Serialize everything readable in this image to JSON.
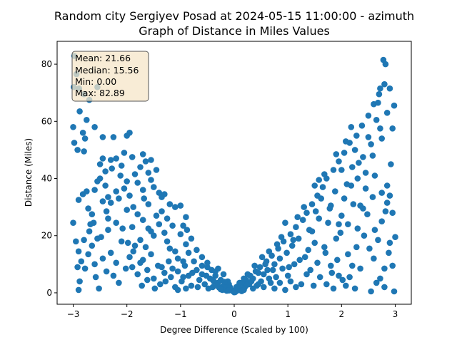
{
  "chart_data": {
    "type": "scatter",
    "title_line1": "Random city Sergiyev Posad at 2024-05-15 11:00:00  - azimuth",
    "title_line2": "Graph of Distance in Miles Values",
    "xlabel": "Degree Difference (Scaled by 100)",
    "ylabel": "Distance (Miles)",
    "xlim": [
      -3.3,
      3.3
    ],
    "ylim": [
      -4,
      88
    ],
    "xticks": [
      -3,
      -2,
      -1,
      0,
      1,
      2,
      3
    ],
    "yticks": [
      0,
      20,
      40,
      60,
      80
    ],
    "point_color": "#1f77b4",
    "grid": false,
    "stats_box": {
      "mean": "Mean: 21.66",
      "median": "Median: 15.56",
      "min": "Min: 0.00",
      "max": "Max: 82.89",
      "placement": "top-left",
      "facecolor": "#f5e6c8"
    },
    "points": [
      [
        -2.98,
        82.9
      ],
      [
        -2.94,
        76.5
      ],
      [
        -2.99,
        72.0
      ],
      [
        -2.89,
        71.5
      ],
      [
        -2.8,
        69.5
      ],
      [
        -2.7,
        67.5
      ],
      [
        -2.55,
        72.0
      ],
      [
        -3.0,
        58.0
      ],
      [
        -2.88,
        63.5
      ],
      [
        -2.75,
        60.5
      ],
      [
        -2.82,
        56.0
      ],
      [
        -2.98,
        52.5
      ],
      [
        -2.92,
        50.0
      ],
      [
        -2.8,
        49.5
      ],
      [
        -2.78,
        54.0
      ],
      [
        -2.6,
        58.0
      ],
      [
        -2.45,
        54.5
      ],
      [
        -2.25,
        54.5
      ],
      [
        -2.0,
        55.0
      ],
      [
        -1.95,
        56.0
      ],
      [
        -2.5,
        45.0
      ],
      [
        -2.4,
        42.5
      ],
      [
        -2.3,
        46.5
      ],
      [
        -2.2,
        47.0
      ],
      [
        -2.1,
        44.5
      ],
      [
        -2.05,
        49.0
      ],
      [
        -1.9,
        47.5
      ],
      [
        -1.7,
        48.5
      ],
      [
        -1.65,
        46.0
      ],
      [
        -1.75,
        44.0
      ],
      [
        -1.6,
        42.0
      ],
      [
        -1.55,
        39.5
      ],
      [
        -1.5,
        37.0
      ],
      [
        -1.4,
        35.0
      ],
      [
        -1.35,
        33.5
      ],
      [
        -1.3,
        34.5
      ],
      [
        -1.2,
        31.0
      ],
      [
        -1.1,
        30.0
      ],
      [
        -1.0,
        30.5
      ],
      [
        -0.9,
        26.5
      ],
      [
        -0.95,
        23.5
      ],
      [
        -2.9,
        32.5
      ],
      [
        -2.82,
        34.5
      ],
      [
        -2.72,
        29.5
      ],
      [
        -2.62,
        24.5
      ],
      [
        -2.55,
        19.0
      ],
      [
        -2.45,
        32.0
      ],
      [
        -2.38,
        28.5
      ],
      [
        -2.3,
        31.5
      ],
      [
        -2.2,
        35.5
      ],
      [
        -2.15,
        33.0
      ],
      [
        -2.05,
        36.5
      ],
      [
        -2.0,
        39.0
      ],
      [
        -1.95,
        34.0
      ],
      [
        -1.88,
        30.0
      ],
      [
        -1.8,
        27.5
      ],
      [
        -1.7,
        25.5
      ],
      [
        -1.6,
        22.5
      ],
      [
        -1.5,
        20.0
      ],
      [
        -1.45,
        27.0
      ],
      [
        -1.4,
        24.0
      ],
      [
        -1.3,
        21.0
      ],
      [
        -1.25,
        18.0
      ],
      [
        -1.2,
        15.5
      ],
      [
        -1.1,
        14.5
      ],
      [
        -1.05,
        12.0
      ],
      [
        -0.95,
        11.0
      ],
      [
        -0.9,
        17.0
      ],
      [
        -0.85,
        14.0
      ],
      [
        -3.0,
        24.5
      ],
      [
        -2.95,
        18.0
      ],
      [
        -2.9,
        14.5
      ],
      [
        -2.85,
        11.0
      ],
      [
        -2.92,
        9.0
      ],
      [
        -2.88,
        4.0
      ],
      [
        -2.9,
        1.0
      ],
      [
        -2.78,
        8.5
      ],
      [
        -2.72,
        13.5
      ],
      [
        -2.65,
        16.5
      ],
      [
        -2.6,
        10.0
      ],
      [
        -2.58,
        5.5
      ],
      [
        -2.52,
        1.5
      ],
      [
        -2.45,
        12.0
      ],
      [
        -2.38,
        7.5
      ],
      [
        -2.3,
        14.0
      ],
      [
        -2.25,
        6.0
      ],
      [
        -2.2,
        10.5
      ],
      [
        -2.15,
        3.5
      ],
      [
        -2.1,
        18.0
      ],
      [
        -2.02,
        8.5
      ],
      [
        -1.95,
        12.5
      ],
      [
        -1.9,
        9.0
      ],
      [
        -1.85,
        16.5
      ],
      [
        -1.8,
        6.5
      ],
      [
        -1.72,
        2.5
      ],
      [
        -1.7,
        11.5
      ],
      [
        -1.62,
        8.0
      ],
      [
        -1.55,
        13.5
      ],
      [
        -1.5,
        5.0
      ],
      [
        -1.42,
        9.5
      ],
      [
        -1.38,
        3.0
      ],
      [
        -1.3,
        7.0
      ],
      [
        -1.22,
        11.0
      ],
      [
        -1.18,
        5.5
      ],
      [
        -1.1,
        2.0
      ],
      [
        -1.05,
        7.5
      ],
      [
        -0.98,
        4.0
      ],
      [
        -0.92,
        9.5
      ],
      [
        -0.85,
        6.0
      ],
      [
        -0.8,
        2.5
      ],
      [
        -0.75,
        11.0
      ],
      [
        -0.7,
        8.0
      ],
      [
        -0.65,
        4.5
      ],
      [
        -0.6,
        6.5
      ],
      [
        -0.55,
        3.0
      ],
      [
        -0.5,
        9.0
      ],
      [
        -0.45,
        5.0
      ],
      [
        -0.4,
        2.0
      ],
      [
        -0.35,
        6.0
      ],
      [
        -0.3,
        3.5
      ],
      [
        -0.25,
        4.5
      ],
      [
        -0.2,
        2.5
      ],
      [
        -0.15,
        1.5
      ],
      [
        -0.1,
        3.0
      ],
      [
        -0.05,
        1.0
      ],
      [
        -0.7,
        15.0
      ],
      [
        -0.8,
        19.0
      ],
      [
        -0.6,
        12.5
      ],
      [
        -0.5,
        10.5
      ],
      [
        -0.42,
        8.0
      ],
      [
        -0.35,
        7.5
      ],
      [
        -0.88,
        22.0
      ],
      [
        -1.0,
        20.5
      ],
      [
        -1.15,
        23.5
      ],
      [
        -1.25,
        26.0
      ],
      [
        -1.35,
        28.5
      ],
      [
        -1.6,
        31.0
      ],
      [
        -1.7,
        36.0
      ],
      [
        -1.8,
        38.5
      ],
      [
        -2.35,
        22.0
      ],
      [
        -2.48,
        19.5
      ],
      [
        -2.7,
        21.5
      ],
      [
        -2.8,
        18.5
      ],
      [
        -2.68,
        24.0
      ],
      [
        -2.4,
        37.5
      ],
      [
        -2.5,
        40.0
      ],
      [
        -2.6,
        36.0
      ],
      [
        -2.35,
        33.5
      ],
      [
        -2.0,
        29.0
      ],
      [
        -1.9,
        23.0
      ],
      [
        -1.75,
        18.5
      ],
      [
        -1.65,
        16.0
      ],
      [
        -1.55,
        21.5
      ],
      [
        -0.3,
        8.5
      ],
      [
        -0.2,
        6.5
      ],
      [
        -0.12,
        4.0
      ],
      [
        -0.08,
        2.0
      ],
      [
        -0.02,
        0.5
      ],
      [
        0.02,
        0.3
      ],
      [
        0.05,
        1.2
      ],
      [
        0.08,
        2.5
      ],
      [
        0.12,
        1.5
      ],
      [
        0.15,
        3.5
      ],
      [
        0.2,
        2.0
      ],
      [
        0.22,
        4.5
      ],
      [
        0.28,
        3.0
      ],
      [
        0.3,
        6.0
      ],
      [
        0.35,
        5.0
      ],
      [
        0.4,
        7.5
      ],
      [
        0.42,
        2.5
      ],
      [
        0.48,
        9.0
      ],
      [
        0.5,
        4.0
      ],
      [
        0.55,
        6.5
      ],
      [
        0.6,
        11.0
      ],
      [
        0.62,
        8.0
      ],
      [
        0.68,
        3.5
      ],
      [
        0.7,
        13.0
      ],
      [
        0.75,
        10.0
      ],
      [
        0.78,
        5.5
      ],
      [
        0.82,
        15.5
      ],
      [
        0.85,
        12.0
      ],
      [
        0.9,
        8.5
      ],
      [
        0.92,
        18.0
      ],
      [
        0.98,
        14.0
      ],
      [
        1.0,
        6.0
      ],
      [
        1.05,
        20.5
      ],
      [
        1.08,
        16.5
      ],
      [
        1.12,
        10.0
      ],
      [
        1.15,
        23.0
      ],
      [
        1.2,
        19.0
      ],
      [
        1.25,
        3.0
      ],
      [
        1.28,
        25.5
      ],
      [
        1.32,
        12.5
      ],
      [
        1.35,
        28.0
      ],
      [
        1.4,
        22.0
      ],
      [
        1.42,
        8.0
      ],
      [
        1.45,
        31.0
      ],
      [
        1.5,
        17.5
      ],
      [
        1.55,
        34.0
      ],
      [
        1.58,
        26.0
      ],
      [
        1.6,
        5.5
      ],
      [
        1.65,
        37.0
      ],
      [
        1.7,
        14.0
      ],
      [
        1.72,
        40.0
      ],
      [
        1.78,
        29.5
      ],
      [
        1.8,
        9.5
      ],
      [
        1.85,
        43.0
      ],
      [
        1.88,
        35.5
      ],
      [
        1.9,
        19.0
      ],
      [
        1.95,
        46.0
      ],
      [
        2.0,
        27.0
      ],
      [
        2.02,
        4.5
      ],
      [
        2.05,
        49.0
      ],
      [
        2.1,
        38.0
      ],
      [
        2.12,
        13.5
      ],
      [
        2.15,
        52.5
      ],
      [
        2.2,
        44.0
      ],
      [
        2.22,
        31.0
      ],
      [
        2.28,
        55.0
      ],
      [
        2.3,
        22.5
      ],
      [
        2.35,
        8.5
      ],
      [
        2.38,
        58.5
      ],
      [
        2.4,
        47.5
      ],
      [
        2.45,
        36.5
      ],
      [
        2.5,
        62.0
      ],
      [
        2.52,
        15.5
      ],
      [
        2.55,
        52.0
      ],
      [
        2.6,
        66.0
      ],
      [
        2.62,
        41.0
      ],
      [
        2.65,
        3.5
      ],
      [
        2.7,
        69.5
      ],
      [
        2.72,
        57.5
      ],
      [
        2.75,
        25.0
      ],
      [
        2.8,
        73.0
      ],
      [
        2.78,
        81.5
      ],
      [
        2.82,
        80.0
      ],
      [
        2.85,
        63.0
      ],
      [
        2.9,
        71.5
      ],
      [
        2.92,
        45.0
      ],
      [
        2.95,
        57.5
      ],
      [
        2.98,
        65.5
      ],
      [
        2.9,
        34.0
      ],
      [
        2.95,
        28.0
      ],
      [
        3.0,
        19.5
      ],
      [
        2.98,
        0.5
      ],
      [
        2.95,
        9.5
      ],
      [
        2.88,
        14.0
      ],
      [
        2.85,
        31.5
      ],
      [
        2.8,
        8.5
      ],
      [
        2.72,
        5.0
      ],
      [
        2.68,
        18.5
      ],
      [
        2.6,
        12.0
      ],
      [
        2.55,
        0.5
      ],
      [
        2.48,
        27.5
      ],
      [
        2.42,
        20.0
      ],
      [
        2.35,
        30.5
      ],
      [
        2.28,
        16.0
      ],
      [
        2.2,
        9.5
      ],
      [
        2.12,
        24.0
      ],
      [
        2.05,
        33.0
      ],
      [
        1.98,
        21.0
      ],
      [
        1.92,
        11.5
      ],
      [
        1.82,
        7.0
      ],
      [
        1.75,
        24.5
      ],
      [
        1.68,
        16.0
      ],
      [
        1.62,
        33.0
      ],
      [
        1.52,
        28.5
      ],
      [
        1.45,
        21.5
      ],
      [
        1.38,
        15.0
      ],
      [
        1.3,
        30.0
      ],
      [
        1.22,
        11.5
      ],
      [
        1.18,
        26.5
      ],
      [
        1.1,
        18.5
      ],
      [
        1.02,
        9.0
      ],
      [
        0.95,
        24.5
      ],
      [
        0.88,
        19.5
      ],
      [
        0.8,
        17.0
      ],
      [
        0.72,
        8.0
      ],
      [
        0.65,
        14.5
      ],
      [
        0.58,
        10.0
      ],
      [
        0.52,
        12.5
      ],
      [
        0.45,
        7.0
      ],
      [
        0.38,
        9.5
      ],
      [
        0.32,
        4.0
      ],
      [
        0.25,
        6.5
      ],
      [
        0.18,
        5.0
      ],
      [
        0.1,
        3.5
      ],
      [
        0.06,
        0.8
      ],
      [
        0.14,
        0.6
      ],
      [
        -0.14,
        0.7
      ],
      [
        -0.22,
        1.0
      ],
      [
        -0.28,
        1.8
      ],
      [
        -0.38,
        4.0
      ],
      [
        1.9,
        48.5
      ],
      [
        2.0,
        43.0
      ],
      [
        2.08,
        53.0
      ],
      [
        2.18,
        58.0
      ],
      [
        2.25,
        50.0
      ],
      [
        2.32,
        45.5
      ],
      [
        2.45,
        42.0
      ],
      [
        2.5,
        54.5
      ],
      [
        2.58,
        48.0
      ],
      [
        2.65,
        60.5
      ],
      [
        2.68,
        66.5
      ],
      [
        2.72,
        71.5
      ],
      [
        2.75,
        54.0
      ],
      [
        2.85,
        37.5
      ],
      [
        1.5,
        37.5
      ],
      [
        1.58,
        39.5
      ],
      [
        1.68,
        41.5
      ],
      [
        1.8,
        30.5
      ],
      [
        1.95,
        24.0
      ],
      [
        2.18,
        37.5
      ],
      [
        2.3,
        40.0
      ],
      [
        2.4,
        29.5
      ],
      [
        2.58,
        33.5
      ],
      [
        2.62,
        22.0
      ],
      [
        2.75,
        35.0
      ],
      [
        2.82,
        28.5
      ],
      [
        2.9,
        17.5
      ],
      [
        2.8,
        2.0
      ],
      [
        -1.45,
        43.0
      ],
      [
        -1.55,
        46.5
      ],
      [
        -1.68,
        33.0
      ],
      [
        -1.85,
        41.5
      ],
      [
        -2.12,
        41.0
      ],
      [
        -2.28,
        43.5
      ],
      [
        -2.45,
        47.0
      ],
      [
        -2.55,
        39.0
      ],
      [
        -2.65,
        27.5
      ],
      [
        -2.75,
        35.5
      ],
      [
        -2.35,
        26.0
      ],
      [
        -2.2,
        24.5
      ],
      [
        -2.08,
        22.5
      ],
      [
        -1.98,
        17.5
      ],
      [
        -1.88,
        14.5
      ],
      [
        -1.75,
        10.5
      ],
      [
        -1.62,
        4.5
      ],
      [
        -1.48,
        1.5
      ],
      [
        -1.35,
        9.0
      ],
      [
        -1.28,
        4.0
      ],
      [
        -1.15,
        8.5
      ],
      [
        -1.05,
        1.0
      ],
      [
        -0.95,
        5.5
      ],
      [
        -0.9,
        1.5
      ],
      [
        -0.78,
        7.0
      ],
      [
        -0.68,
        2.0
      ],
      [
        -0.6,
        9.5
      ],
      [
        -0.52,
        6.0
      ],
      [
        -0.48,
        1.5
      ],
      [
        -0.4,
        4.5
      ],
      [
        -0.32,
        2.5
      ],
      [
        -0.25,
        1.2
      ],
      [
        -0.18,
        3.8
      ],
      [
        -0.1,
        0.8
      ],
      [
        0.0,
        0.2
      ],
      [
        0.04,
        2.0
      ],
      [
        0.18,
        1.0
      ],
      [
        0.24,
        2.8
      ],
      [
        0.35,
        1.5
      ],
      [
        0.45,
        3.0
      ],
      [
        0.55,
        2.0
      ],
      [
        0.65,
        5.0
      ],
      [
        0.75,
        1.5
      ],
      [
        0.85,
        3.5
      ],
      [
        0.95,
        1.0
      ],
      [
        1.05,
        4.0
      ],
      [
        1.15,
        2.0
      ],
      [
        1.35,
        6.5
      ],
      [
        1.48,
        2.5
      ],
      [
        1.55,
        10.5
      ],
      [
        1.72,
        3.0
      ],
      [
        1.85,
        1.5
      ],
      [
        1.95,
        6.0
      ],
      [
        2.08,
        2.5
      ],
      [
        2.15,
        5.5
      ],
      [
        2.25,
        1.5
      ]
    ]
  }
}
